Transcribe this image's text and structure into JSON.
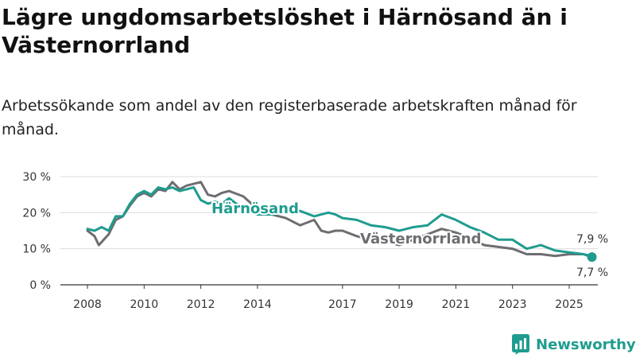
{
  "title": "Lägre ungdomsarbetslöshet i Härnösand än i Västernorrland",
  "subtitle": "Arbetssökande som andel av den registerbaserade arbetskraften månad för månad.",
  "brand": {
    "name": "Newsworthy",
    "icon": "bar-chart-logo-icon"
  },
  "colors": {
    "harnosand": "#1f9c8f",
    "vasternorrland": "#6d6d72",
    "grid": "#dcdcdc",
    "axis": "#333333"
  },
  "chart_data": {
    "type": "line",
    "title": "Lägre ungdomsarbetslöshet i Härnösand än i Västernorrland",
    "xlabel": "",
    "ylabel": "",
    "xlim": [
      2008,
      2026
    ],
    "ylim": [
      0,
      30
    ],
    "yticks": [
      0,
      10,
      20,
      30
    ],
    "ytick_labels": [
      "0 %",
      "10 %",
      "20 %",
      "30 %"
    ],
    "xticks": [
      2008,
      2010,
      2012,
      2014,
      2017,
      2019,
      2021,
      2023,
      2025
    ],
    "xtick_labels": [
      "2008",
      "2010",
      "2012",
      "2014",
      "2017",
      "2019",
      "2021",
      "2023",
      "2025"
    ],
    "grid": true,
    "series": [
      {
        "name": "Härnösand",
        "label": "Härnösand",
        "color": "#1f9c8f",
        "end_label": "7,7 %",
        "end_marker": true,
        "x": [
          2008.0,
          2008.25,
          2008.5,
          2008.75,
          2009.0,
          2009.25,
          2009.5,
          2009.75,
          2010.0,
          2010.25,
          2010.5,
          2010.75,
          2011.0,
          2011.25,
          2011.5,
          2011.75,
          2012.0,
          2012.25,
          2012.5,
          2012.75,
          2013.0,
          2013.5,
          2014.0,
          2014.5,
          2015.0,
          2015.5,
          2016.0,
          2016.25,
          2016.5,
          2016.75,
          2017.0,
          2017.5,
          2018.0,
          2018.5,
          2019.0,
          2019.5,
          2020.0,
          2020.5,
          2021.0,
          2021.5,
          2022.0,
          2022.5,
          2023.0,
          2023.5,
          2024.0,
          2024.5,
          2025.0,
          2025.5,
          2025.8
        ],
        "y": [
          15.5,
          15.0,
          16.0,
          15.0,
          19.0,
          19.0,
          22.5,
          25.0,
          26.0,
          25.0,
          27.0,
          26.5,
          27.0,
          26.0,
          26.5,
          27.0,
          23.5,
          22.5,
          23.0,
          22.5,
          24.0,
          21.0,
          19.5,
          19.5,
          20.0,
          20.5,
          19.0,
          19.5,
          20.0,
          19.5,
          18.5,
          18.0,
          16.5,
          16.0,
          15.0,
          16.0,
          16.5,
          19.5,
          18.0,
          16.0,
          14.5,
          12.5,
          12.5,
          10.0,
          11.0,
          9.5,
          9.0,
          8.5,
          7.7
        ]
      },
      {
        "name": "Västernorrland",
        "label": "Västernorrland",
        "color": "#6d6d72",
        "end_label": "7,9 %",
        "end_marker": false,
        "x": [
          2008.0,
          2008.25,
          2008.4,
          2008.75,
          2009.0,
          2009.25,
          2009.5,
          2009.75,
          2010.0,
          2010.25,
          2010.5,
          2010.75,
          2011.0,
          2011.25,
          2011.5,
          2011.75,
          2012.0,
          2012.25,
          2012.5,
          2012.75,
          2013.0,
          2013.5,
          2014.0,
          2014.5,
          2015.0,
          2015.5,
          2016.0,
          2016.25,
          2016.5,
          2016.75,
          2017.0,
          2017.5,
          2018.0,
          2018.5,
          2019.0,
          2019.5,
          2020.0,
          2020.5,
          2021.0,
          2021.5,
          2022.0,
          2022.5,
          2023.0,
          2023.5,
          2024.0,
          2024.5,
          2025.0,
          2025.5,
          2025.8
        ],
        "y": [
          15.0,
          13.5,
          11.0,
          14.0,
          18.0,
          19.0,
          22.0,
          24.5,
          25.5,
          24.5,
          26.5,
          26.0,
          28.5,
          26.5,
          27.5,
          28.0,
          28.5,
          25.0,
          24.5,
          25.5,
          26.0,
          24.5,
          21.0,
          19.5,
          18.5,
          16.5,
          18.0,
          15.0,
          14.5,
          15.0,
          15.0,
          13.5,
          12.5,
          12.0,
          11.0,
          12.5,
          14.0,
          15.5,
          14.5,
          13.0,
          11.0,
          10.5,
          10.0,
          8.5,
          8.5,
          8.0,
          8.5,
          8.5,
          7.9
        ]
      }
    ]
  }
}
